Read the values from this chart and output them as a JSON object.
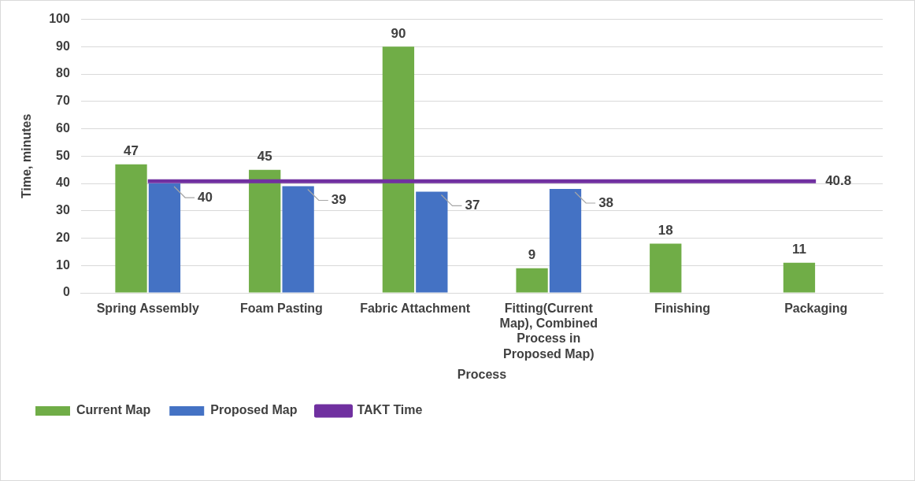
{
  "chart_data": {
    "type": "bar",
    "xlabel": "Process",
    "ylabel": "Time, minutes",
    "categories": [
      "Spring Assembly",
      "Foam Pasting",
      "Fabric Attachment",
      "Fitting(Current Map), Combined Process in Proposed Map)",
      "Finishing",
      "Packaging"
    ],
    "series": [
      {
        "name": "Current Map",
        "color": "#70ad47",
        "values": [
          47,
          45,
          90,
          9,
          18,
          11
        ],
        "value_labels": [
          "47",
          "45",
          "90",
          "9",
          "18",
          "11"
        ]
      },
      {
        "name": "Proposed Map",
        "color": "#4472c4",
        "values": [
          40,
          39,
          37,
          38,
          null,
          null
        ],
        "value_labels": [
          "40",
          "39",
          "37",
          "38",
          null,
          null
        ]
      },
      {
        "name": "TAKT Time",
        "type": "line",
        "color": "#7030a0",
        "values": [
          40.8,
          40.8,
          40.8,
          40.8,
          40.8,
          40.8
        ],
        "value_labels": [
          null,
          null,
          null,
          null,
          null,
          "40.8"
        ]
      }
    ],
    "ylim": [
      0,
      100
    ],
    "yticks": [
      0,
      10,
      20,
      30,
      40,
      50,
      60,
      70,
      80,
      90,
      100
    ],
    "grid": "y",
    "legend": "bottom",
    "marker": "none"
  }
}
